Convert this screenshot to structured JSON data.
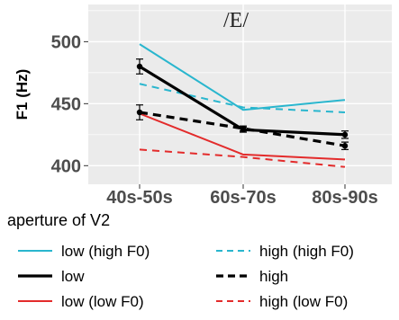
{
  "chart_data": {
    "type": "line",
    "title": "/E/",
    "xlabel": "",
    "ylabel": "F1 (Hz)",
    "categories": [
      "40s-50s",
      "60s-70s",
      "80s-90s"
    ],
    "ylim": [
      385,
      530
    ],
    "yticks": [
      400,
      450,
      500
    ],
    "grid": true,
    "legend_title": "aperture of V2",
    "legend_position": "bottom",
    "series": [
      {
        "name": "low (high F0)",
        "values": [
          498,
          445,
          453
        ],
        "color": "#29B6CE",
        "dashed": false,
        "thick": false
      },
      {
        "name": "high (high F0)",
        "values": [
          466,
          447,
          443
        ],
        "color": "#29B6CE",
        "dashed": true,
        "thick": false
      },
      {
        "name": "low",
        "values": [
          480,
          429,
          425
        ],
        "color": "#000000",
        "dashed": false,
        "thick": true,
        "error": [
          6,
          2,
          3
        ]
      },
      {
        "name": "high",
        "values": [
          443,
          430,
          416
        ],
        "color": "#000000",
        "dashed": true,
        "thick": true,
        "error": [
          6,
          2,
          3
        ]
      },
      {
        "name": "low (low F0)",
        "values": [
          442,
          409,
          405
        ],
        "color": "#E32B2B",
        "dashed": false,
        "thick": false
      },
      {
        "name": "high (low F0)",
        "values": [
          413,
          407,
          399
        ],
        "color": "#E32B2B",
        "dashed": true,
        "thick": false
      }
    ]
  }
}
